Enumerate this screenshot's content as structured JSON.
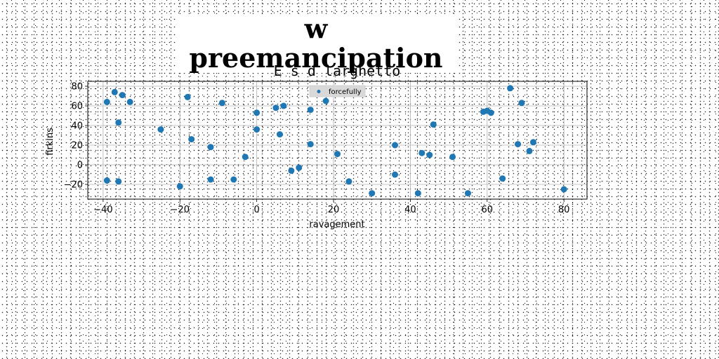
{
  "suptitle": "w preemancipation",
  "chart_data": {
    "type": "scatter",
    "title": "E s d larghetto",
    "xlabel": "ravagement",
    "ylabel": "firkins",
    "xlim": [
      -44,
      86
    ],
    "ylim": [
      -35,
      85
    ],
    "xticks": [
      -40,
      -20,
      0,
      20,
      40,
      60,
      80
    ],
    "yticks": [
      -20,
      0,
      20,
      40,
      60,
      80
    ],
    "grid": true,
    "legend_position": "top-center",
    "series": [
      {
        "name": "forcefully",
        "color": "#1f77b4",
        "x": [
          -39,
          -37,
          -35,
          -33,
          -39,
          -36,
          -36,
          -25,
          -20,
          -18,
          -17,
          -12,
          -12,
          -9,
          -6,
          -3,
          0,
          0,
          5,
          6,
          7,
          9,
          11,
          14,
          14,
          18,
          21,
          24,
          30,
          36,
          36,
          42,
          43,
          45,
          46,
          51,
          55,
          59,
          60,
          61,
          64,
          66,
          68,
          69,
          71,
          72,
          80
        ],
        "y": [
          64,
          74,
          71,
          64,
          -16,
          43,
          -17,
          36,
          -22,
          69,
          26,
          18,
          -15,
          63,
          -15,
          8,
          53,
          36,
          58,
          31,
          60,
          -6,
          -3,
          56,
          21,
          65,
          11,
          -17,
          -29,
          20,
          -10,
          -29,
          12,
          10,
          41,
          8,
          -29,
          54,
          55,
          53,
          -14,
          78,
          21,
          63,
          14,
          23,
          -25
        ]
      }
    ]
  }
}
